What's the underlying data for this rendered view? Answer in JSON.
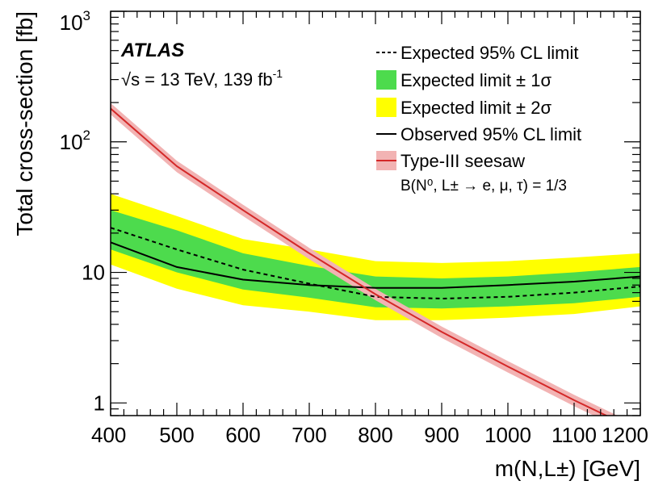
{
  "chart_data": {
    "type": "line",
    "x_scale": "linear",
    "y_scale": "log",
    "xlim": [
      400,
      1200
    ],
    "ylim": [
      0.8,
      1000
    ],
    "xlabel": "m(N,L±) [GeV]",
    "ylabel": "Total cross-section [fb]",
    "x_ticks": [
      "400",
      "500",
      "600",
      "700",
      "800",
      "900",
      "1000",
      "1100",
      "1200"
    ],
    "y_ticks": [
      {
        "value": 1,
        "label": "1"
      },
      {
        "value": 10,
        "label": "10"
      },
      {
        "value": 100,
        "label": "10",
        "sup": "2"
      },
      {
        "value": 1000,
        "label": "10",
        "sup": "3"
      }
    ],
    "experiment": "ATLAS",
    "energy_label": "√s = 13 TeV, 139 fb",
    "energy_sup": "-1",
    "branching_label": "B(N⁰, L± → e, μ, τ) = 1/3",
    "legend": {
      "position": "top-right",
      "entries": [
        {
          "key": "expected",
          "label": "Expected 95% CL limit",
          "symbol": "dashed-line"
        },
        {
          "key": "band1",
          "label": "Expected limit ± 1σ",
          "symbol": "green-box"
        },
        {
          "key": "band2",
          "label": "Expected limit ± 2σ",
          "symbol": "yellow-box"
        },
        {
          "key": "observed",
          "label": "Observed 95% CL limit",
          "symbol": "solid-line"
        },
        {
          "key": "theory",
          "label": "Type-III seesaw",
          "symbol": "red-line-band"
        }
      ]
    },
    "x": [
      400,
      500,
      600,
      700,
      800,
      900,
      1000,
      1100,
      1200
    ],
    "series": [
      {
        "key": "expected",
        "values": [
          22,
          15,
          10.5,
          8.2,
          6.5,
          6.3,
          6.5,
          7,
          7.8
        ]
      },
      {
        "key": "observed",
        "values": [
          17,
          11,
          8.8,
          8,
          7.6,
          7.6,
          8,
          8.5,
          9.3
        ]
      },
      {
        "key": "band1_low",
        "values": [
          15,
          10,
          7.4,
          6.4,
          5.4,
          5.3,
          5.5,
          5.8,
          6.5
        ]
      },
      {
        "key": "band1_high",
        "values": [
          30,
          21,
          14,
          11.2,
          9.3,
          9,
          9.3,
          10,
          11
        ]
      },
      {
        "key": "band2_low",
        "values": [
          11.5,
          7.5,
          5.6,
          5,
          4.3,
          4.3,
          4.5,
          4.8,
          5.5
        ]
      },
      {
        "key": "band2_high",
        "values": [
          40,
          27,
          18,
          15,
          12.2,
          11.8,
          12.2,
          13,
          14
        ]
      }
    ],
    "theory": {
      "x": [
        400,
        500,
        600,
        700,
        800,
        900,
        1000,
        1100,
        1200
      ],
      "values": [
        180,
        65,
        30,
        14,
        6.8,
        3.5,
        1.9,
        1.05,
        0.6
      ],
      "uncertainty_fraction": 0.1
    },
    "grid": false,
    "colors": {
      "band1": "#4ddb4d",
      "band2": "#ffff00",
      "theory_line": "#d42828",
      "theory_band": "#f2b3b3",
      "axes": "#000000"
    }
  }
}
